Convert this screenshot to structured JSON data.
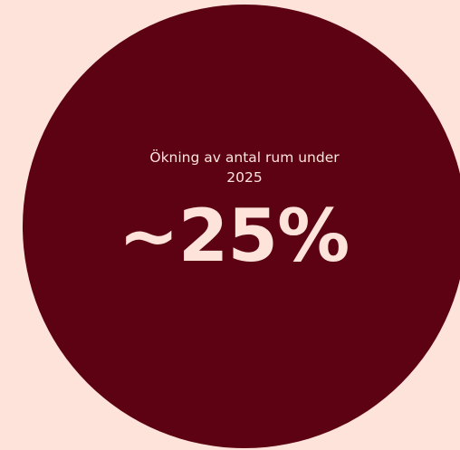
{
  "stat": {
    "label": "Ökning av antal rum under 2025",
    "value": "~25%"
  },
  "colors": {
    "background": "#fde3d9",
    "circle": "#5c0213",
    "text": "#fde3d9"
  }
}
